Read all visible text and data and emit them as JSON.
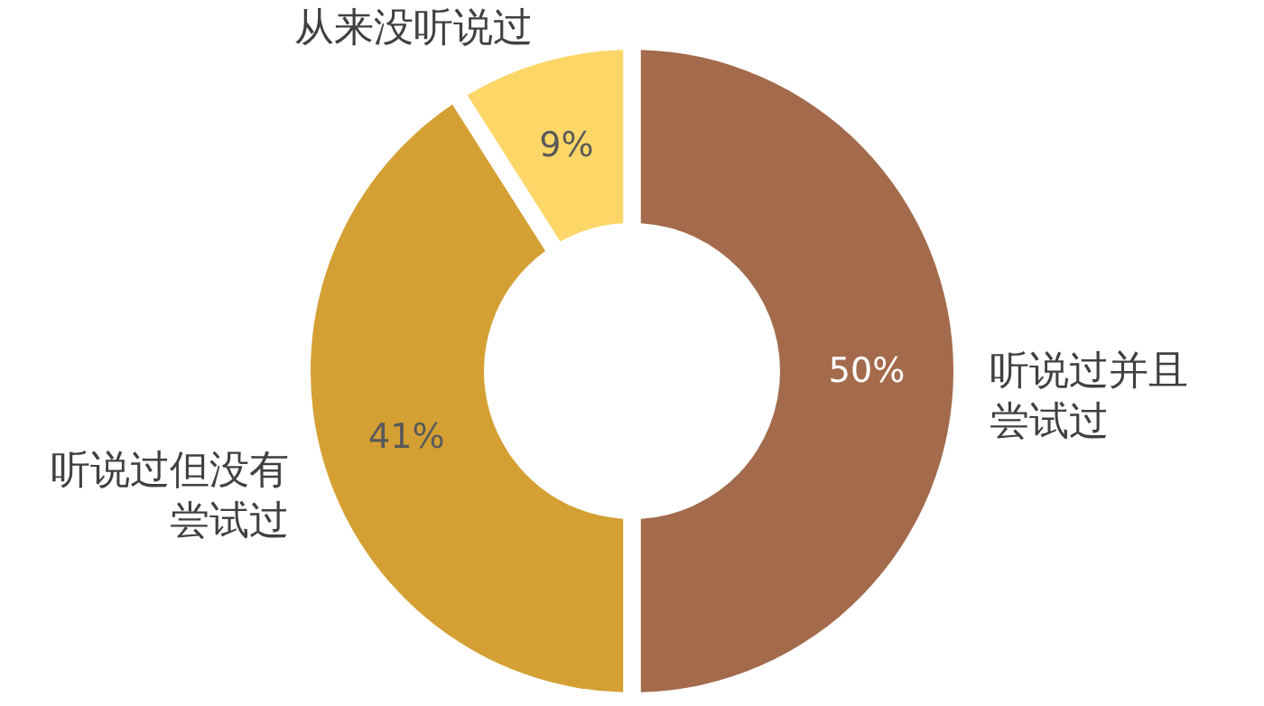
{
  "chart_data": {
    "type": "donut",
    "categories": [
      "听说过并且尝试过",
      "听说过但没有尝试过",
      "从来没听说过"
    ],
    "values": [
      50,
      41,
      9
    ],
    "colors": [
      "#a36b4b",
      "#d4a033",
      "#fcd768"
    ],
    "value_labels": [
      "50%",
      "41%",
      "9%"
    ],
    "legend": false
  }
}
